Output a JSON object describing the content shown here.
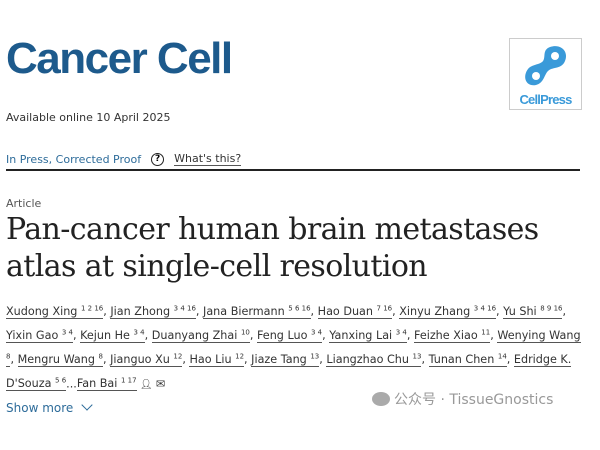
{
  "journal": {
    "title": "Cancer Cell",
    "publisher_logo": "CellPress"
  },
  "available": "Available online 10 April 2025",
  "status": {
    "label": "In Press, Corrected Proof",
    "help_icon": "question-circle-icon",
    "whats_this": "What's this?"
  },
  "article": {
    "type": "Article",
    "title": "Pan-cancer human brain metastases atlas at single-cell resolution"
  },
  "authors": [
    {
      "name": "Xudong Xing",
      "sup": "1 2 16"
    },
    {
      "name": "Jian Zhong",
      "sup": "3 4 16"
    },
    {
      "name": "Jana Biermann",
      "sup": "5 6 16"
    },
    {
      "name": "Hao Duan",
      "sup": "7 16"
    },
    {
      "name": "Xinyu Zhang",
      "sup": "3 4 16"
    },
    {
      "name": "Yu Shi",
      "sup": "8 9 16"
    },
    {
      "name": "Yixin Gao",
      "sup": "3 4"
    },
    {
      "name": "Kejun He",
      "sup": "3 4"
    },
    {
      "name": "Duanyang Zhai",
      "sup": "10"
    },
    {
      "name": "Feng Luo",
      "sup": "3 4"
    },
    {
      "name": "Yanxing Lai",
      "sup": "3 4"
    },
    {
      "name": "Feizhe Xiao",
      "sup": "11"
    },
    {
      "name": "Wenying Wang",
      "sup": "8"
    },
    {
      "name": "Mengru Wang",
      "sup": "8"
    },
    {
      "name": "Jianguo Xu",
      "sup": "12"
    },
    {
      "name": "Hao Liu",
      "sup": "12"
    },
    {
      "name": "Jiaze Tang",
      "sup": "13"
    },
    {
      "name": "Liangzhao Chu",
      "sup": "13"
    },
    {
      "name": "Tunan Chen",
      "sup": "14"
    },
    {
      "name": "Edridge K. D'Souza",
      "sup": "5 6"
    },
    {
      "name": "Fan Bai",
      "sup": "1 17"
    }
  ],
  "show_more": "Show more",
  "watermark": "公众号 · TissueGnostics",
  "colors": {
    "brand": "#1d5a8c",
    "link": "#2e6c9a",
    "logo": "#3a9ad9"
  }
}
